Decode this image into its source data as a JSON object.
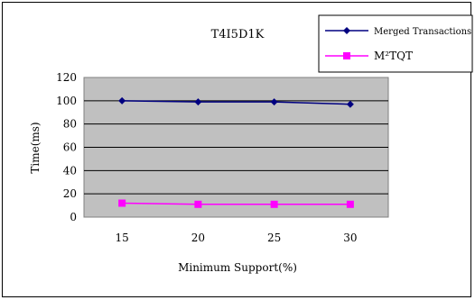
{
  "chart_data": {
    "type": "line",
    "title": "T4I5D1K",
    "xlabel": "Minimum Support(%)",
    "ylabel": "Time(ms)",
    "categories": [
      "15",
      "20",
      "25",
      "30"
    ],
    "ylim": [
      0,
      120
    ],
    "yticks": [
      "0",
      "20",
      "40",
      "60",
      "80",
      "100",
      "120"
    ],
    "grid": true,
    "legend_position": "top-right",
    "plot_background": "#c0c0c0",
    "series": [
      {
        "name": "Merged Transactions",
        "values": [
          100,
          99,
          99,
          97
        ],
        "color": "#000080",
        "marker": "diamond"
      },
      {
        "name": "M²TQT",
        "values": [
          12,
          11,
          11,
          11
        ],
        "color": "#ff00ff",
        "marker": "square"
      }
    ]
  }
}
